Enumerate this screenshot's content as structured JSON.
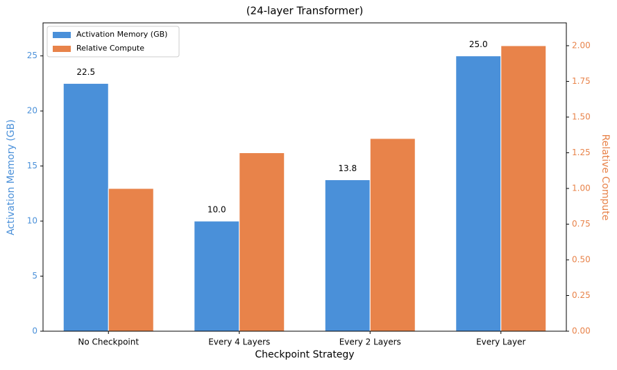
{
  "chart_data": {
    "type": "bar",
    "title": "(24-layer Transformer)",
    "xlabel": "Checkpoint Strategy",
    "ylabel": "Activation Memory (GB)",
    "y2label": "Relative Compute",
    "categories": [
      "No Checkpoint",
      "Every 4 Layers",
      "Every 2 Layers",
      "Every Layer"
    ],
    "series": [
      {
        "name": "Activation Memory (GB)",
        "color": "#4a90d9",
        "values": [
          22.5,
          10.0,
          13.75,
          25.0
        ],
        "value_labels": [
          "22.5",
          "10.0",
          "13.8",
          "25.0"
        ]
      },
      {
        "name": "Relative Compute",
        "color": "#e8834a",
        "values": [
          1.0,
          1.25,
          1.35,
          2.0
        ],
        "axis": "y2"
      }
    ],
    "ylim": [
      0,
      28
    ],
    "yticks": [
      0,
      5,
      10,
      15,
      20,
      25
    ],
    "y2lim": [
      0,
      2.16
    ],
    "y2ticks": [
      {
        "value": 0,
        "label": "0.00"
      },
      {
        "value": 0.25,
        "label": "0.25"
      },
      {
        "value": 0.5,
        "label": "0.50"
      },
      {
        "value": 0.75,
        "label": "0.75"
      },
      {
        "value": 1.0,
        "label": "1.00"
      },
      {
        "value": 1.25,
        "label": "1.25"
      },
      {
        "value": 1.5,
        "label": "1.50"
      },
      {
        "value": 1.75,
        "label": "1.75"
      },
      {
        "value": 2.0,
        "label": "2.00"
      }
    ],
    "legend": "upper left"
  }
}
